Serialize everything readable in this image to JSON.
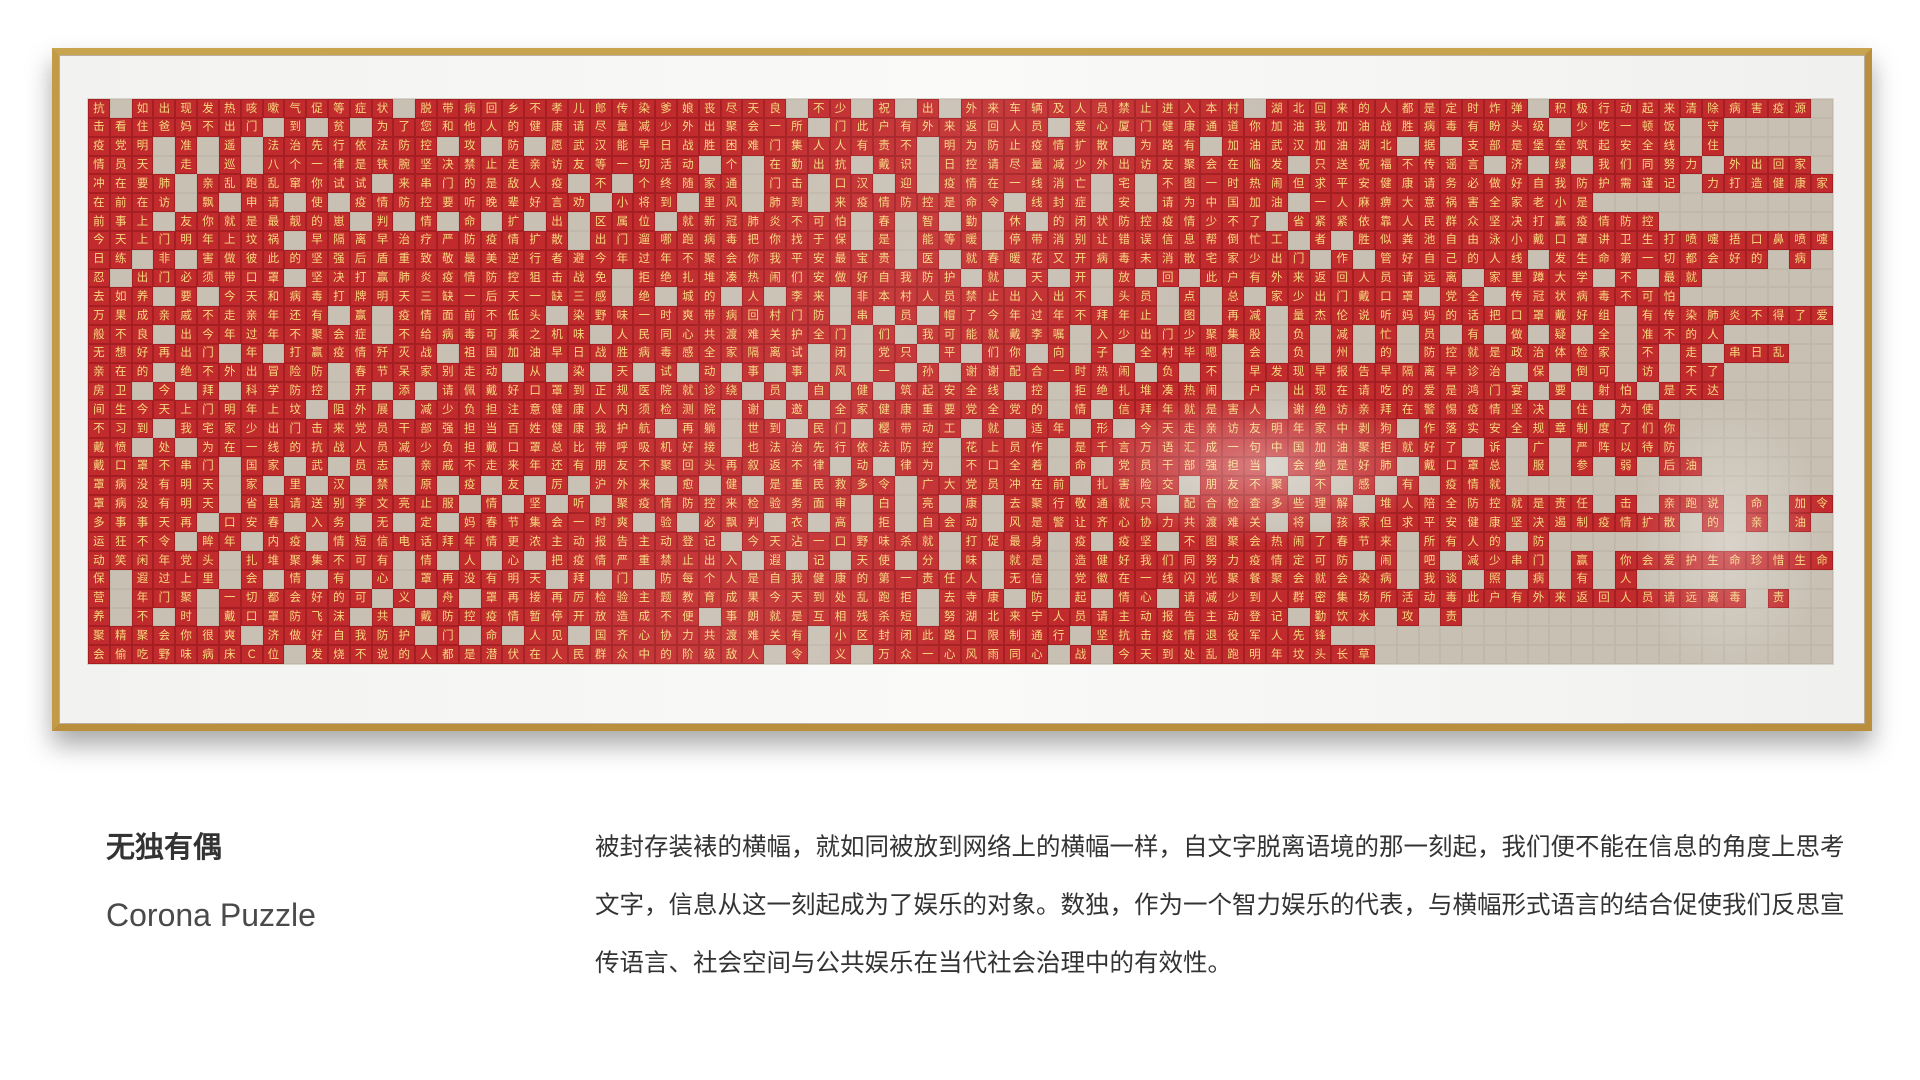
{
  "artwork": {
    "name": "framed-red-banner-word-puzzle",
    "rows": [
      "抗 如出现发热咳嗽气促等症状 脱带病回乡不孝儿郎传染爹娘丧尽天良 不少 祝 出 外来车辆及人员禁止进入本村 湖北回来的人都是定时炸弹 积极行动起来清除病害疫源",
      "击看住爸妈不出门 到 贫 为了您和他人的健康请尽量减少外出聚会一所 门此户有外来返回人员 爱心厦门健康通道你加油我加油战胜病毒有盼头级 少吃一顿饭 守",
      "疫党明 准 遥 法治先行依法防控 攻 防 愿武汉能早日战胜困难门集人人有责不 明为防止疫情扩散 为路有 加油武汉加油湖北 据 支部是堡垒筑起安全线 住",
      "情员天 走 巡 八个一律是铁腕坚决禁止走亲访友等一切活动 个 在勤出抗 戴识 日控请尽量减少外出访友聚会在临发 只送祝福不传谣言 济 绿 我们同努力 外出回家",
      "冲在要肺 亲乱跑乱窜你试试 来串门的是敌人疫 不 个终随家通 门击 口汉 迎 疫情在一线消亡 宅 不图一时热闹但求平安健康请务必做好自我防护需谨记 力打造健康家园",
      "在前在访 飘 申请 使 疫情防控要听晚辈好言劝 小将到 里风 肺到 来疫情防控是命令 线封症 安 请为中国加油 一人麻痹大意祸害全家老小是",
      "前事上 友你就是最靓的崽 判 情 命 扩 出 区属位 就新冠肺炎不可怕 春 智 勤 休 的闭状防控疫情少不了 省紧紧依靠人民群众坚决打赢疫情防控",
      "今天上门明年上坟祸 早隔离早治疗严防疫情扩散 出门遛哪跑病毒把你找于保 是 能等暖 停带消别让错误信息帮倒忙工 者 胜似粪池自由泳小戴口罩讲卫生打喷嚏捂口鼻喷嚏后",
      "日练 非 害做彼此的坚强后盾重致敬最美逆行者避今年过年不聚会你我平安最宝贵 医 就春暖花又开病毒未消散宅家少出门 作 管好自己的人线 发生命第一切都会好的 病",
      "忍 出门必须带口罩 坚决打赢肺炎疫情防控狙击战免 拒绝扎堆凑热闹们安做好自我防护 就 天 开 放 回 此户有外来返回人员请远离 家里蹲大学 不 最就",
      "去如养 要 今天和病毒打牌明天三缺一后天一缺三感 绝 城的 人 李来 非本村人员禁止出入出不 头员 点 总 家少出门戴口罩 党全 传冠状病毒不可怕",
      "万果成亲戚不走亲年还有 赢 疫情面前不低头 染野味一时爽带病回村门防 串 员 帽了今年过年不拜年止 图 再减 量杰伦说听妈妈的话把口罩戴好组 有传染肺炎不得了爱有",
      "般不良 出今年过年不聚会症 不给病毒可乘之机味 人民同心共渡难关护全门 们 我可能就戴李嘱 入少出门少聚集股 负 减 忙 员 有 做 疑 全 准不的人",
      "无想好再出门 年 打赢疫情歼灭战 祖国加油早日战胜病毒感全家隔离试 闭 党只 平 们你 向 子 全村毕嗯 会 负 州 的 防控就是政治体检家 不 走 串日乱",
      "亲在的 绝不外出冒险防 春节呆家别走动 从 染 天 试 动 事 事 风 一 孙 谢谢配合一时热闹 负 不 早发现早报告早隔离早诊治 保 倒可 访 不了",
      "房卫 今 拜 科学防控 开 添 请佩戴好口罩到正规医院就诊绕 员 自 健 筑起安全线 控 拒绝扎堆凑热闹 户 出现在请吃的爱是鸿门宴 要 射怕 是天达",
      "间生今天上门明年上坟 阻外展 减少负担注意健康人内须检测院 谢 邀 全家健康重要党全党的 情 信拜年就是害人 谢绝访亲拜在警惕疫情坚决 住 为使",
      "不习到 我宅家少出门击来党员干部强担当百姓健康我护航 再躺 世到 民门 樱带动工 就 适年 形 今天走亲访友明年家中剥狗 作落实安全规章制度了们你",
      "戴愤 处 为在一线的抗战人员减少负担戴口罩总比带呼吸机好接 也法治先行依法防控 花上员作 是千言万语汇成一句中国加油聚拒就好了 诉 广 严阵以待防",
      "戴口罩不串门 国家 武 员志 亲戚不走来年还有朋友不聚回头再叙返不律 动 律为 不口全着 命 党员干部强担当 会绝是好肺 戴口罩总 服 参 弱 后油",
      "罩病没有明天 家 里 汉 禁 原 疫 友 厉 沪外来 愈 健 是重民救多令 广大党员冲在前 扎害险交 朋友不聚 不 感 有 疫情就",
      "罩病没有明天 省县请送别李文亮止服 情 坚 听 聚疫情防控来检验务面审 白 亮 康 去聚行敬通就只 配合检查多些理解 堆人陪全防控就是责任 击 亲跑说 命 加令",
      "多事事天再 口安春 入务 无 定 妈春节集会一时爽 验 必飘判 衣 高 拒 自会动 风是警让齐心协力共渡难关 将 孩家但求平安健康坚决遏制疫情扩散 的 亲 油",
      "运狂不令 眸年 内疫 情短信电话拜年情更浓主动报告主动登记 今天沾一口野味杀就 打促最身 疫 疫坚 不图聚会热闹了春节来 所有人的 防",
      "动笑闲年党头 扎堆聚集不可有 情 人 心 把疫情严重禁止出入 遐 记 天使 分 味 就是 造健好我们同努力疫情定可防 闹 吧 减少串门 赢 你会爱护生命珍惜生命胜",
      "保 遐过上里 会 情 有 心 罩再没有明天 拜 门 防每个人是自我健康的第一责任人 无信 党徽在一线闪光聚餐聚会就会染病 我谈 照 病 有 人",
      "营 年门聚 一切都会好的可 义 舟 罩再接再厉检验主题教育成果今天到处乱跑拒 去寺康 防 起 情心 请减少到人群密集场所活动毒此户有外来返回人员请远离毒 责",
      "养 不 时 戴口罩防飞沫 共 戴防控疫情暂停开放造成不便 事朗就是互相残杀短 努湖北来宁人员请主动报告主动登记 勤饮水 攻 责",
      "聚精聚会你很爽 济做好自我防护 门 命 人见 国齐心协力共渡难关有 小区封闭此路口限制通行 坚抗击疫情退役军人先锋",
      "会偷吃野味病床C位 发烧不说的人都是潜伏在人民群众中的阶级敌人 令 义 万众一心风雨同心 战 今天到处乱跑明年坟头长草"
    ]
  },
  "caption": {
    "title_cn": "无独有偶",
    "title_en": "Corona Puzzle",
    "description": "被封存装裱的横幅，就如同被放到网络上的横幅一样，自文字脱离语境的那一刻起，我们便不能在信息的角度上思考文字，信息从这一刻起成为了娱乐的对象。数独，作为一个智力娱乐的代表，与横幅形式语言的结合促使我们反思宣传语言、社会空间与公共娱乐在当代社会治理中的有效性。"
  }
}
